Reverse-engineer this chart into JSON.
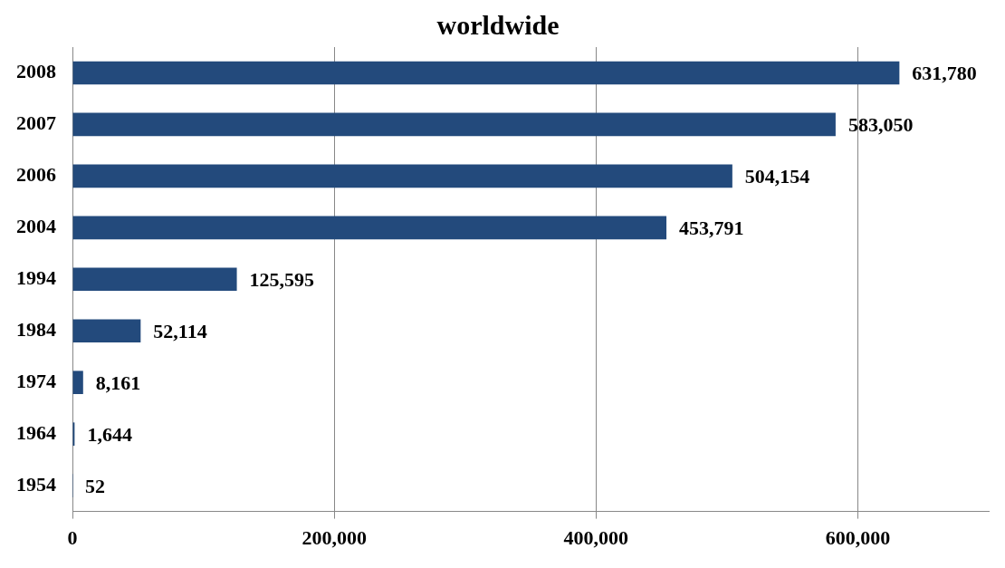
{
  "chart_data": {
    "type": "bar",
    "orientation": "horizontal",
    "title": "worldwide",
    "categories": [
      "2008",
      "2007",
      "2006",
      "2004",
      "1994",
      "1984",
      "1974",
      "1964",
      "1954"
    ],
    "values": [
      631780,
      583050,
      504154,
      453791,
      125595,
      52114,
      8161,
      1644,
      52
    ],
    "color": "#234a7c",
    "value_labels": [
      "631,780",
      "583,050",
      "504,154",
      "453,791",
      "125,595",
      "52,114",
      "8,161",
      "1,644",
      "52"
    ],
    "xlim": [
      0,
      700000
    ],
    "xticks": [
      0,
      {
        "value": 200000,
        "label": "200,000"
      },
      {
        "value": 400000,
        "label": "400,000"
      },
      {
        "value": 600000,
        "label": "600,000"
      }
    ],
    "grid": "x",
    "legend": false
  }
}
